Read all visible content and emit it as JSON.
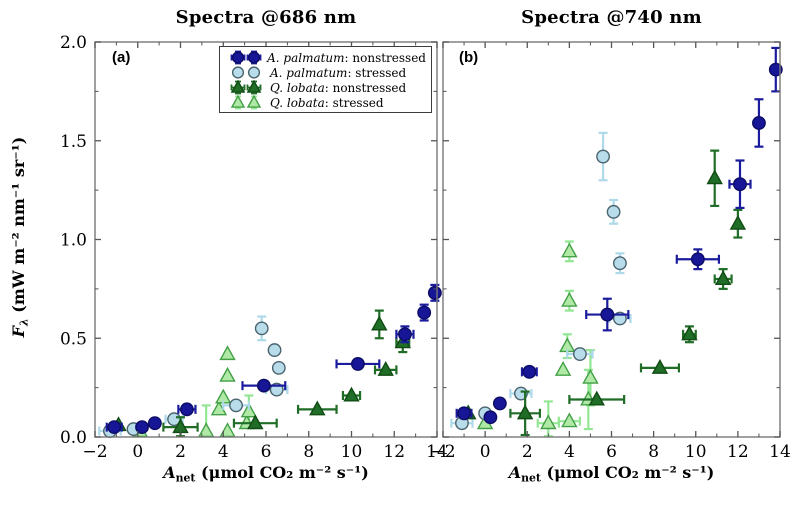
{
  "figure": {
    "y_axis": {
      "variable": "F",
      "subscript": "λ",
      "units": " (mW m⁻² nm⁻¹ sr⁻¹)"
    },
    "x_axis": {
      "variable": "A",
      "subscript": "net",
      "units": " (μmol CO₂ m⁻² s⁻¹)"
    },
    "style": {
      "spine_color": "#787878",
      "tick_color": "#555555",
      "text_color": "#000000",
      "background": "#ffffff"
    }
  },
  "legend": {
    "entries": [
      {
        "species": "A. palmatum",
        "suffix": ": nonstressed",
        "series_index": 0,
        "bars": "both"
      },
      {
        "species": "A. palmatum",
        "suffix": ": stressed",
        "series_index": 1,
        "bars": "none"
      },
      {
        "species": "Q. lobata",
        "suffix": ": nonstressed",
        "series_index": 2,
        "bars": "both"
      },
      {
        "species": "Q. lobata",
        "suffix": ": stressed",
        "series_index": 3,
        "bars": "vertical"
      }
    ]
  },
  "chart_data": [
    {
      "type": "scatter",
      "title": "Spectra @686 nm",
      "panel_label": "(a)",
      "xlim": [
        -2,
        14
      ],
      "ylim": [
        0,
        2
      ],
      "x_tick_values": [
        -2,
        0,
        2,
        4,
        6,
        8,
        10,
        12,
        14
      ],
      "x_tick_labels": [
        "−2",
        "0",
        "2",
        "4",
        "6",
        "8",
        "10",
        "12",
        "14"
      ],
      "y_tick_values": [
        0,
        0.5,
        1.0,
        1.5,
        2.0
      ],
      "y_tick_labels": [
        "0.0",
        "0.5",
        "1.0",
        "1.5",
        "2.0"
      ],
      "show_y_tick_labels": true,
      "series": [
        {
          "name": "A. palmatum: nonstressed",
          "marker": "circle",
          "fill": "#161696",
          "edge": "#0c0c66",
          "ebar": "#1b1b9e",
          "points": [
            {
              "x": -1.1,
              "y": 0.05,
              "xe": 0.35
            },
            {
              "x": 0.2,
              "y": 0.05
            },
            {
              "x": 0.8,
              "y": 0.07
            },
            {
              "x": 2.3,
              "y": 0.14,
              "xe": 0.4
            },
            {
              "x": 5.9,
              "y": 0.26,
              "xe": 1.0
            },
            {
              "x": 10.3,
              "y": 0.37,
              "xe": 1.0
            },
            {
              "x": 12.5,
              "y": 0.52,
              "xe": 0.4,
              "ye": 0.04
            },
            {
              "x": 13.4,
              "y": 0.63,
              "ye": 0.04
            },
            {
              "x": 13.9,
              "y": 0.73,
              "ye": 0.04
            }
          ]
        },
        {
          "name": "A. palmatum: stressed",
          "marker": "circle",
          "fill": "#b9dcea",
          "edge": "#4a646f",
          "ebar": "#aed9ea",
          "points": [
            {
              "x": -1.3,
              "y": 0.03,
              "xe": 0.5
            },
            {
              "x": -0.2,
              "y": 0.04
            },
            {
              "x": 1.7,
              "y": 0.09,
              "xe": 0.4
            },
            {
              "x": 4.6,
              "y": 0.16,
              "xe": 0.6
            },
            {
              "x": 6.5,
              "y": 0.24,
              "xe": 0.5
            },
            {
              "x": 6.6,
              "y": 0.35
            },
            {
              "x": 6.4,
              "y": 0.44
            },
            {
              "x": 5.8,
              "y": 0.55,
              "ye": 0.06
            }
          ]
        },
        {
          "name": "Q. lobata: nonstressed",
          "marker": "triangle",
          "fill": "#1f6d26",
          "edge": "#114c14",
          "ebar": "#1f6d26",
          "points": [
            {
              "x": -0.9,
              "y": 0.06
            },
            {
              "x": 2.0,
              "y": 0.05,
              "xe": 0.8,
              "ye": 0.05
            },
            {
              "x": 5.5,
              "y": 0.07,
              "xe": 1.0
            },
            {
              "x": 8.4,
              "y": 0.14,
              "xe": 0.9
            },
            {
              "x": 10.0,
              "y": 0.21,
              "xe": 0.4
            },
            {
              "x": 11.6,
              "y": 0.34,
              "xe": 0.5
            },
            {
              "x": 12.4,
              "y": 0.48,
              "xe": 0.3,
              "ye": 0.05
            },
            {
              "x": 11.3,
              "y": 0.57,
              "ye": 0.07
            }
          ]
        },
        {
          "name": "Q. lobata: stressed",
          "marker": "triangle",
          "fill": "#b0e8a6",
          "edge": "#43a047",
          "ebar": "#93e693",
          "points": [
            {
              "x": 0.1,
              "y": 0.03
            },
            {
              "x": 3.2,
              "y": 0.03,
              "ye": 0.13
            },
            {
              "x": 4.2,
              "y": 0.03
            },
            {
              "x": 3.8,
              "y": 0.14
            },
            {
              "x": 4.0,
              "y": 0.2
            },
            {
              "x": 4.2,
              "y": 0.31
            },
            {
              "x": 4.2,
              "y": 0.42
            },
            {
              "x": 5.1,
              "y": 0.07
            },
            {
              "x": 5.2,
              "y": 0.13,
              "ye": 0.08
            }
          ]
        }
      ]
    },
    {
      "type": "scatter",
      "title": "Spectra @740 nm",
      "panel_label": "(b)",
      "xlim": [
        -2,
        14
      ],
      "ylim": [
        0,
        2
      ],
      "x_tick_values": [
        -2,
        0,
        2,
        4,
        6,
        8,
        10,
        12,
        14
      ],
      "x_tick_labels": [
        "−2",
        "0",
        "2",
        "4",
        "6",
        "8",
        "10",
        "12",
        "14"
      ],
      "y_tick_values": [
        0,
        0.5,
        1.0,
        1.5,
        2.0
      ],
      "y_tick_labels": [
        "0.0",
        "0.5",
        "1.0",
        "1.5",
        "2.0"
      ],
      "show_y_tick_labels": false,
      "series": [
        {
          "name": "A. palmatum: nonstressed",
          "marker": "circle",
          "fill": "#161696",
          "edge": "#0c0c66",
          "ebar": "#1b1b9e",
          "points": [
            {
              "x": -1.0,
              "y": 0.12,
              "xe": 0.35
            },
            {
              "x": 0.25,
              "y": 0.1
            },
            {
              "x": 0.7,
              "y": 0.17
            },
            {
              "x": 2.1,
              "y": 0.33,
              "xe": 0.35
            },
            {
              "x": 5.8,
              "y": 0.62,
              "xe": 1.0,
              "ye": 0.08
            },
            {
              "x": 10.1,
              "y": 0.9,
              "xe": 1.0,
              "ye": 0.05
            },
            {
              "x": 12.1,
              "y": 1.28,
              "xe": 0.5,
              "ye": 0.12
            },
            {
              "x": 13.0,
              "y": 1.59,
              "ye": 0.12
            },
            {
              "x": 13.8,
              "y": 1.86,
              "ye": 0.11
            }
          ]
        },
        {
          "name": "A. palmatum: stressed",
          "marker": "circle",
          "fill": "#b9dcea",
          "edge": "#4a646f",
          "ebar": "#aed9ea",
          "points": [
            {
              "x": -1.1,
              "y": 0.07,
              "xe": 0.5
            },
            {
              "x": 0.0,
              "y": 0.12
            },
            {
              "x": 1.7,
              "y": 0.22,
              "xe": 0.5
            },
            {
              "x": 4.5,
              "y": 0.42,
              "xe": 0.6
            },
            {
              "x": 6.4,
              "y": 0.6,
              "xe": 0.5
            },
            {
              "x": 6.4,
              "y": 0.88,
              "ye": 0.05
            },
            {
              "x": 6.1,
              "y": 1.14,
              "ye": 0.06
            },
            {
              "x": 5.6,
              "y": 1.42,
              "ye": 0.12
            }
          ]
        },
        {
          "name": "Q. lobata: nonstressed",
          "marker": "triangle",
          "fill": "#1f6d26",
          "edge": "#114c14",
          "ebar": "#1f6d26",
          "points": [
            {
              "x": -0.8,
              "y": 0.12
            },
            {
              "x": 1.9,
              "y": 0.12,
              "xe": 0.7,
              "ye": 0.11
            },
            {
              "x": 5.3,
              "y": 0.19,
              "xe": 1.3
            },
            {
              "x": 8.3,
              "y": 0.35,
              "xe": 0.9
            },
            {
              "x": 9.7,
              "y": 0.52,
              "xe": 0.3,
              "ye": 0.04
            },
            {
              "x": 11.3,
              "y": 0.8,
              "xe": 0.4,
              "ye": 0.05
            },
            {
              "x": 12.0,
              "y": 1.08,
              "ye": 0.07
            },
            {
              "x": 10.9,
              "y": 1.31,
              "ye": 0.14
            }
          ]
        },
        {
          "name": "Q. lobata: stressed",
          "marker": "triangle",
          "fill": "#b0e8a6",
          "edge": "#43a047",
          "ebar": "#93e693",
          "points": [
            {
              "x": 0.0,
              "y": 0.07
            },
            {
              "x": 3.0,
              "y": 0.07,
              "xe": 0.5,
              "ye": 0.11
            },
            {
              "x": 4.0,
              "y": 0.08,
              "xe": 0.5
            },
            {
              "x": 3.7,
              "y": 0.34
            },
            {
              "x": 3.9,
              "y": 0.46,
              "ye": 0.06
            },
            {
              "x": 4.0,
              "y": 0.69,
              "ye": 0.05
            },
            {
              "x": 4.0,
              "y": 0.94,
              "ye": 0.05
            },
            {
              "x": 4.9,
              "y": 0.19,
              "ye": 0.15
            },
            {
              "x": 5.0,
              "y": 0.3,
              "ye": 0.14
            }
          ]
        }
      ]
    }
  ]
}
